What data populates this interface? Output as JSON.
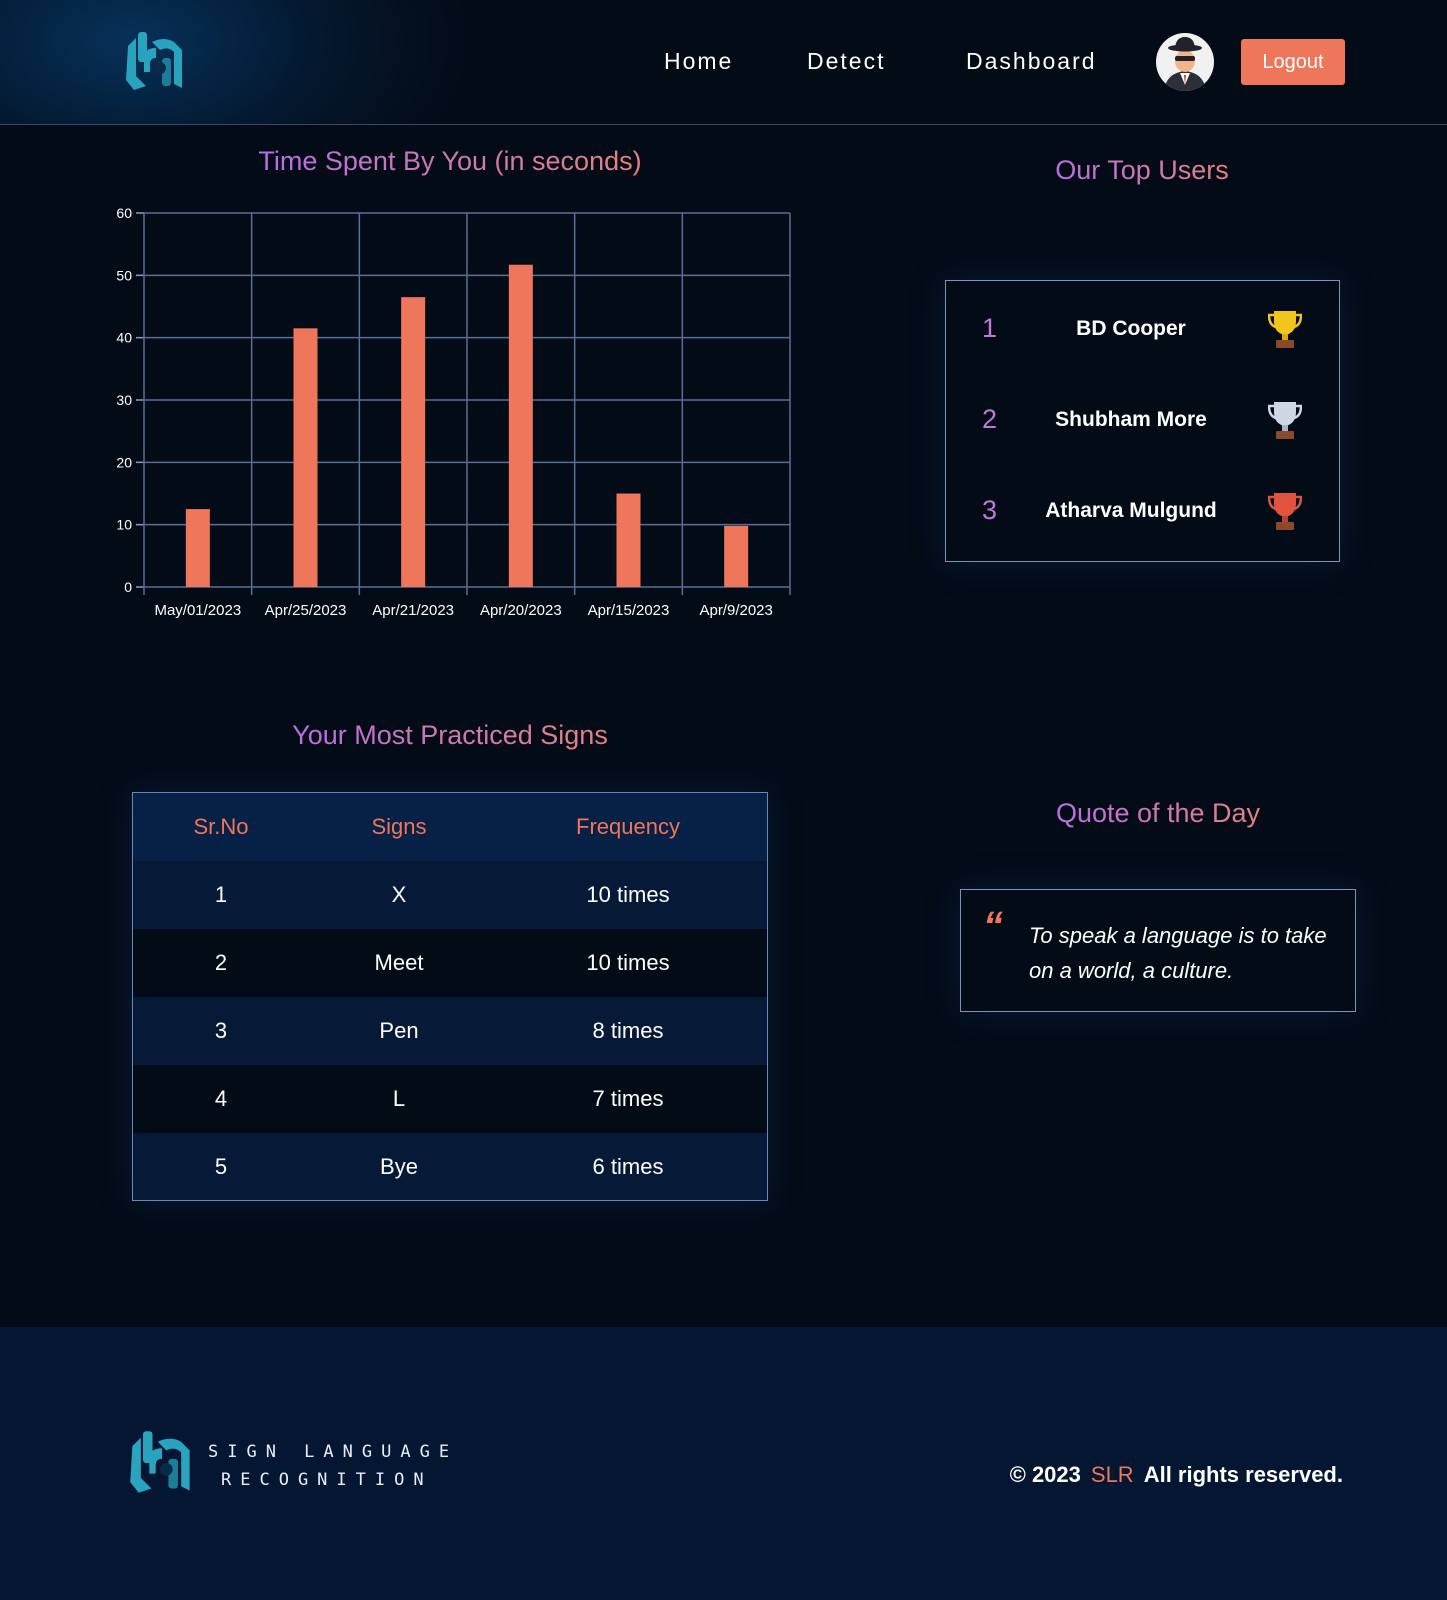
{
  "header": {
    "nav": [
      "Home",
      "Detect",
      "Dashboard"
    ],
    "logout_label": "Logout"
  },
  "time_chart": {
    "title": "Time Spent By You (in seconds)"
  },
  "chart_data": {
    "type": "bar",
    "title": "Time Spent By You (in seconds)",
    "categories": [
      "May/01/2023",
      "Apr/25/2023",
      "Apr/21/2023",
      "Apr/20/2023",
      "Apr/15/2023",
      "Apr/9/2023"
    ],
    "values": [
      12.5,
      41.5,
      46.5,
      51.7,
      15,
      9.8
    ],
    "ylim": [
      0,
      60
    ],
    "yticks": [
      0,
      10,
      20,
      30,
      40,
      50,
      60
    ],
    "grid": true,
    "colors": {
      "bar": "#ee765a",
      "grid": "#5a6f96",
      "axis": "#8a9cc0"
    }
  },
  "top_users": {
    "title": "Our Top Users",
    "users": [
      {
        "rank": "1",
        "name": "BD Cooper",
        "trophy": "gold-trophy-icon"
      },
      {
        "rank": "2",
        "name": "Shubham More",
        "trophy": "silver-trophy-icon"
      },
      {
        "rank": "3",
        "name": "Atharva Mulgund",
        "trophy": "bronze-trophy-icon"
      }
    ]
  },
  "signs": {
    "title": "Your Most Practiced Signs",
    "columns": [
      "Sr.No",
      "Signs",
      "Frequency"
    ],
    "rows": [
      [
        "1",
        "X",
        "10 times"
      ],
      [
        "2",
        "Meet",
        "10 times"
      ],
      [
        "3",
        "Pen",
        "8 times"
      ],
      [
        "4",
        "L",
        "7 times"
      ],
      [
        "5",
        "Bye",
        "6 times"
      ]
    ]
  },
  "quote": {
    "title": "Quote of the Day",
    "mark": "“",
    "text": "To speak a language is to take on a world, a culture."
  },
  "footer": {
    "brand_line1": "SIGN LANGUAGE",
    "brand_line2": "RECOGNITION",
    "copyright_prefix": "© 2023",
    "brand": "SLR",
    "copyright_suffix": "All rights reserved."
  },
  "colors": {
    "accent": "#ee765a",
    "title_gradient_start": "#b76de8",
    "title_gradient_end": "#e8827c",
    "background": "#030b17",
    "logo": "#2aa3bf"
  }
}
